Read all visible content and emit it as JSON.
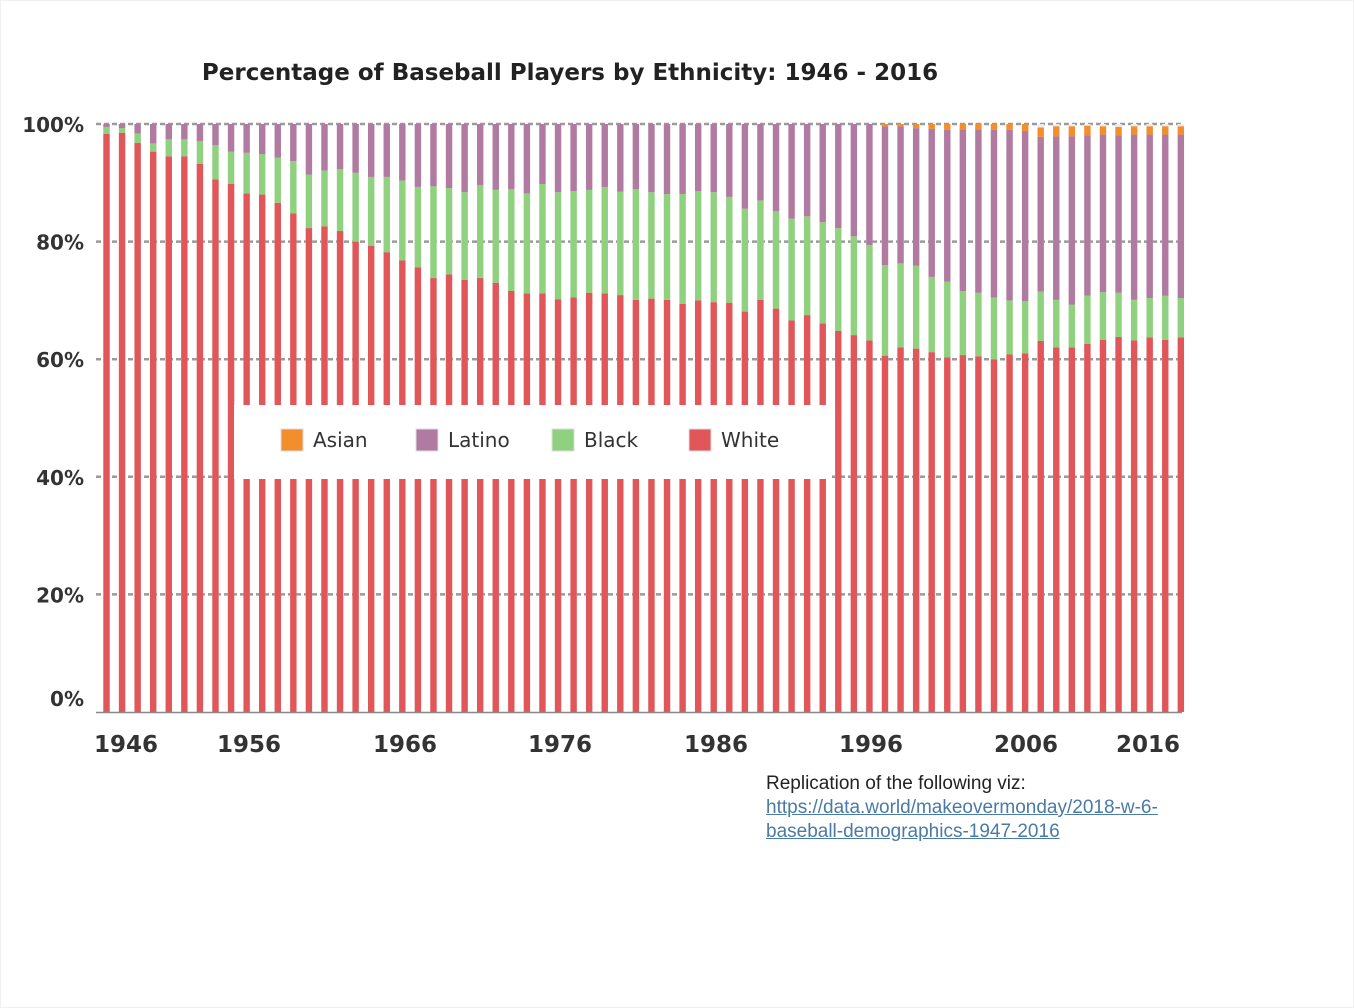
{
  "chart_data": {
    "type": "bar",
    "stacked": true,
    "title": "Percentage of Baseball Players by Ethnicity: 1946 - 2016",
    "xlabel": "",
    "ylabel": "",
    "ylim": [
      0,
      100
    ],
    "grid": true,
    "legend_position": "center-left",
    "x_tick_labels": [
      "1946",
      "1956",
      "1966",
      "1976",
      "1986",
      "1996",
      "2006",
      "2016"
    ],
    "y_tick_labels": [
      "0%",
      "20%",
      "40%",
      "60%",
      "80%",
      "100%"
    ],
    "categories": [
      "1947",
      "1948",
      "1949",
      "1950",
      "1951",
      "1952",
      "1953",
      "1954",
      "1955",
      "1956",
      "1957",
      "1958",
      "1959",
      "1960",
      "1961",
      "1962",
      "1963",
      "1964",
      "1965",
      "1966",
      "1967",
      "1968",
      "1969",
      "1970",
      "1971",
      "1972",
      "1973",
      "1974",
      "1975",
      "1976",
      "1977",
      "1978",
      "1979",
      "1980",
      "1981",
      "1982",
      "1983",
      "1984",
      "1985",
      "1986",
      "1987",
      "1988",
      "1989",
      "1990",
      "1991",
      "1992",
      "1993",
      "1994",
      "1995",
      "1996",
      "1997",
      "1998",
      "1999",
      "2000",
      "2001",
      "2002",
      "2003",
      "2004",
      "2005",
      "2006",
      "2007",
      "2008",
      "2009",
      "2010",
      "2011",
      "2012",
      "2013",
      "2014",
      "2015",
      "2016"
    ],
    "series": [
      {
        "name": "White",
        "color": "#e15759",
        "values": [
          98.3,
          98.5,
          96.8,
          95.3,
          94.5,
          94.5,
          93.2,
          90.6,
          89.8,
          88.2,
          88.0,
          86.6,
          84.8,
          82.3,
          82.6,
          81.8,
          80.0,
          79.3,
          78.2,
          76.8,
          75.6,
          73.8,
          74.4,
          73.5,
          73.8,
          73.0,
          71.6,
          71.2,
          71.2,
          70.2,
          70.5,
          71.3,
          71.2,
          70.9,
          70.1,
          70.3,
          70.1,
          69.4,
          70.0,
          69.7,
          69.6,
          68.1,
          70.1,
          68.6,
          66.6,
          67.5,
          66.1,
          64.8,
          64.1,
          63.2,
          60.6,
          62.0,
          61.8,
          61.2,
          60.3,
          60.7,
          60.5,
          60.0,
          60.8,
          61.0,
          63.1,
          62.0,
          62.0,
          62.6,
          63.3,
          63.8,
          63.2,
          63.7,
          63.3,
          63.7
        ]
      },
      {
        "name": "Black",
        "color": "#8fd17e",
        "values": [
          1.2,
          0.8,
          1.6,
          1.4,
          2.9,
          2.9,
          3.9,
          5.8,
          5.5,
          6.9,
          6.9,
          7.7,
          8.9,
          9.1,
          9.5,
          10.5,
          11.7,
          11.7,
          12.8,
          13.6,
          13.7,
          15.6,
          14.7,
          14.9,
          15.8,
          15.8,
          17.3,
          17.0,
          18.6,
          18.2,
          18.1,
          17.5,
          18.1,
          17.6,
          18.8,
          18.1,
          18.0,
          18.7,
          18.6,
          18.7,
          18.0,
          17.5,
          16.9,
          16.6,
          17.3,
          16.8,
          17.2,
          17.5,
          16.8,
          16.2,
          15.4,
          14.3,
          14.1,
          12.8,
          12.9,
          10.9,
          10.8,
          10.5,
          9.2,
          8.9,
          8.4,
          8.1,
          7.3,
          8.2,
          8.1,
          7.5,
          6.9,
          6.7,
          7.5,
          6.7
        ]
      },
      {
        "name": "Latino",
        "color": "#b07aa1",
        "values": [
          0.5,
          0.7,
          1.6,
          3.3,
          2.6,
          2.6,
          2.9,
          3.6,
          4.7,
          4.9,
          5.1,
          5.7,
          6.3,
          8.6,
          7.9,
          7.7,
          8.3,
          9.0,
          9.0,
          9.6,
          10.7,
          10.6,
          10.9,
          11.6,
          10.4,
          11.2,
          11.1,
          11.8,
          10.2,
          11.6,
          11.4,
          11.2,
          10.7,
          11.5,
          11.1,
          11.6,
          11.9,
          11.9,
          11.4,
          11.6,
          12.4,
          14.4,
          13.0,
          14.8,
          16.1,
          15.7,
          16.7,
          17.7,
          19.1,
          20.6,
          23.6,
          23.3,
          23.4,
          25.2,
          25.8,
          27.5,
          27.8,
          28.5,
          29.0,
          28.9,
          26.3,
          27.8,
          28.6,
          27.3,
          26.8,
          26.8,
          28.1,
          27.8,
          27.4,
          27.8
        ]
      },
      {
        "name": "Asian",
        "color": "#f28e2b",
        "values": [
          0,
          0,
          0,
          0,
          0,
          0,
          0,
          0,
          0,
          0,
          0,
          0,
          0,
          0,
          0,
          0,
          0,
          0,
          0,
          0,
          0,
          0,
          0,
          0,
          0,
          0,
          0,
          0,
          0,
          0,
          0,
          0,
          0,
          0,
          0,
          0,
          0,
          0,
          0,
          0,
          0,
          0,
          0,
          0,
          0,
          0,
          0,
          0,
          0,
          0,
          0.4,
          0.4,
          0.7,
          0.8,
          1.0,
          0.9,
          1.0,
          1.0,
          1.0,
          1.2,
          1.6,
          1.7,
          1.7,
          1.6,
          1.4,
          1.4,
          1.4,
          1.4,
          1.4,
          1.4
        ]
      }
    ],
    "legend": [
      "Asian",
      "Latino",
      "Black",
      "White"
    ]
  },
  "note": {
    "intro": "Replication of the following viz:",
    "link_line1": "https://data.world/makeovermonday/2018-w-6-",
    "link_line2": "baseball-demographics-1947-2016"
  }
}
